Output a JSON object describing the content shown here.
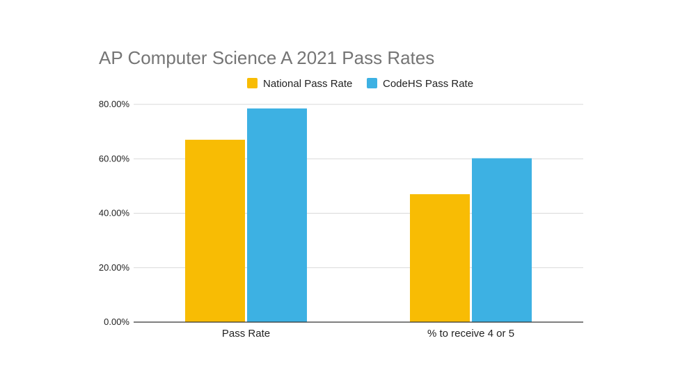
{
  "chart_data": {
    "type": "bar",
    "title": "AP Computer Science A 2021 Pass Rates",
    "xlabel": "",
    "ylabel": "",
    "categories": [
      "Pass Rate",
      "% to receive 4 or 5"
    ],
    "series": [
      {
        "name": "National Pass Rate",
        "color": "#f8bc04",
        "values": [
          67,
          47
        ]
      },
      {
        "name": "CodeHS Pass Rate",
        "color": "#3db1e3",
        "values": [
          78.5,
          60.2
        ]
      }
    ],
    "ylim": [
      0,
      80
    ],
    "yticks": [
      0,
      20,
      40,
      60,
      80
    ],
    "ytick_labels": [
      "0.00%",
      "20.00%",
      "40.00%",
      "60.00%",
      "80.00%"
    ],
    "grid": true,
    "legend_position": "top"
  }
}
